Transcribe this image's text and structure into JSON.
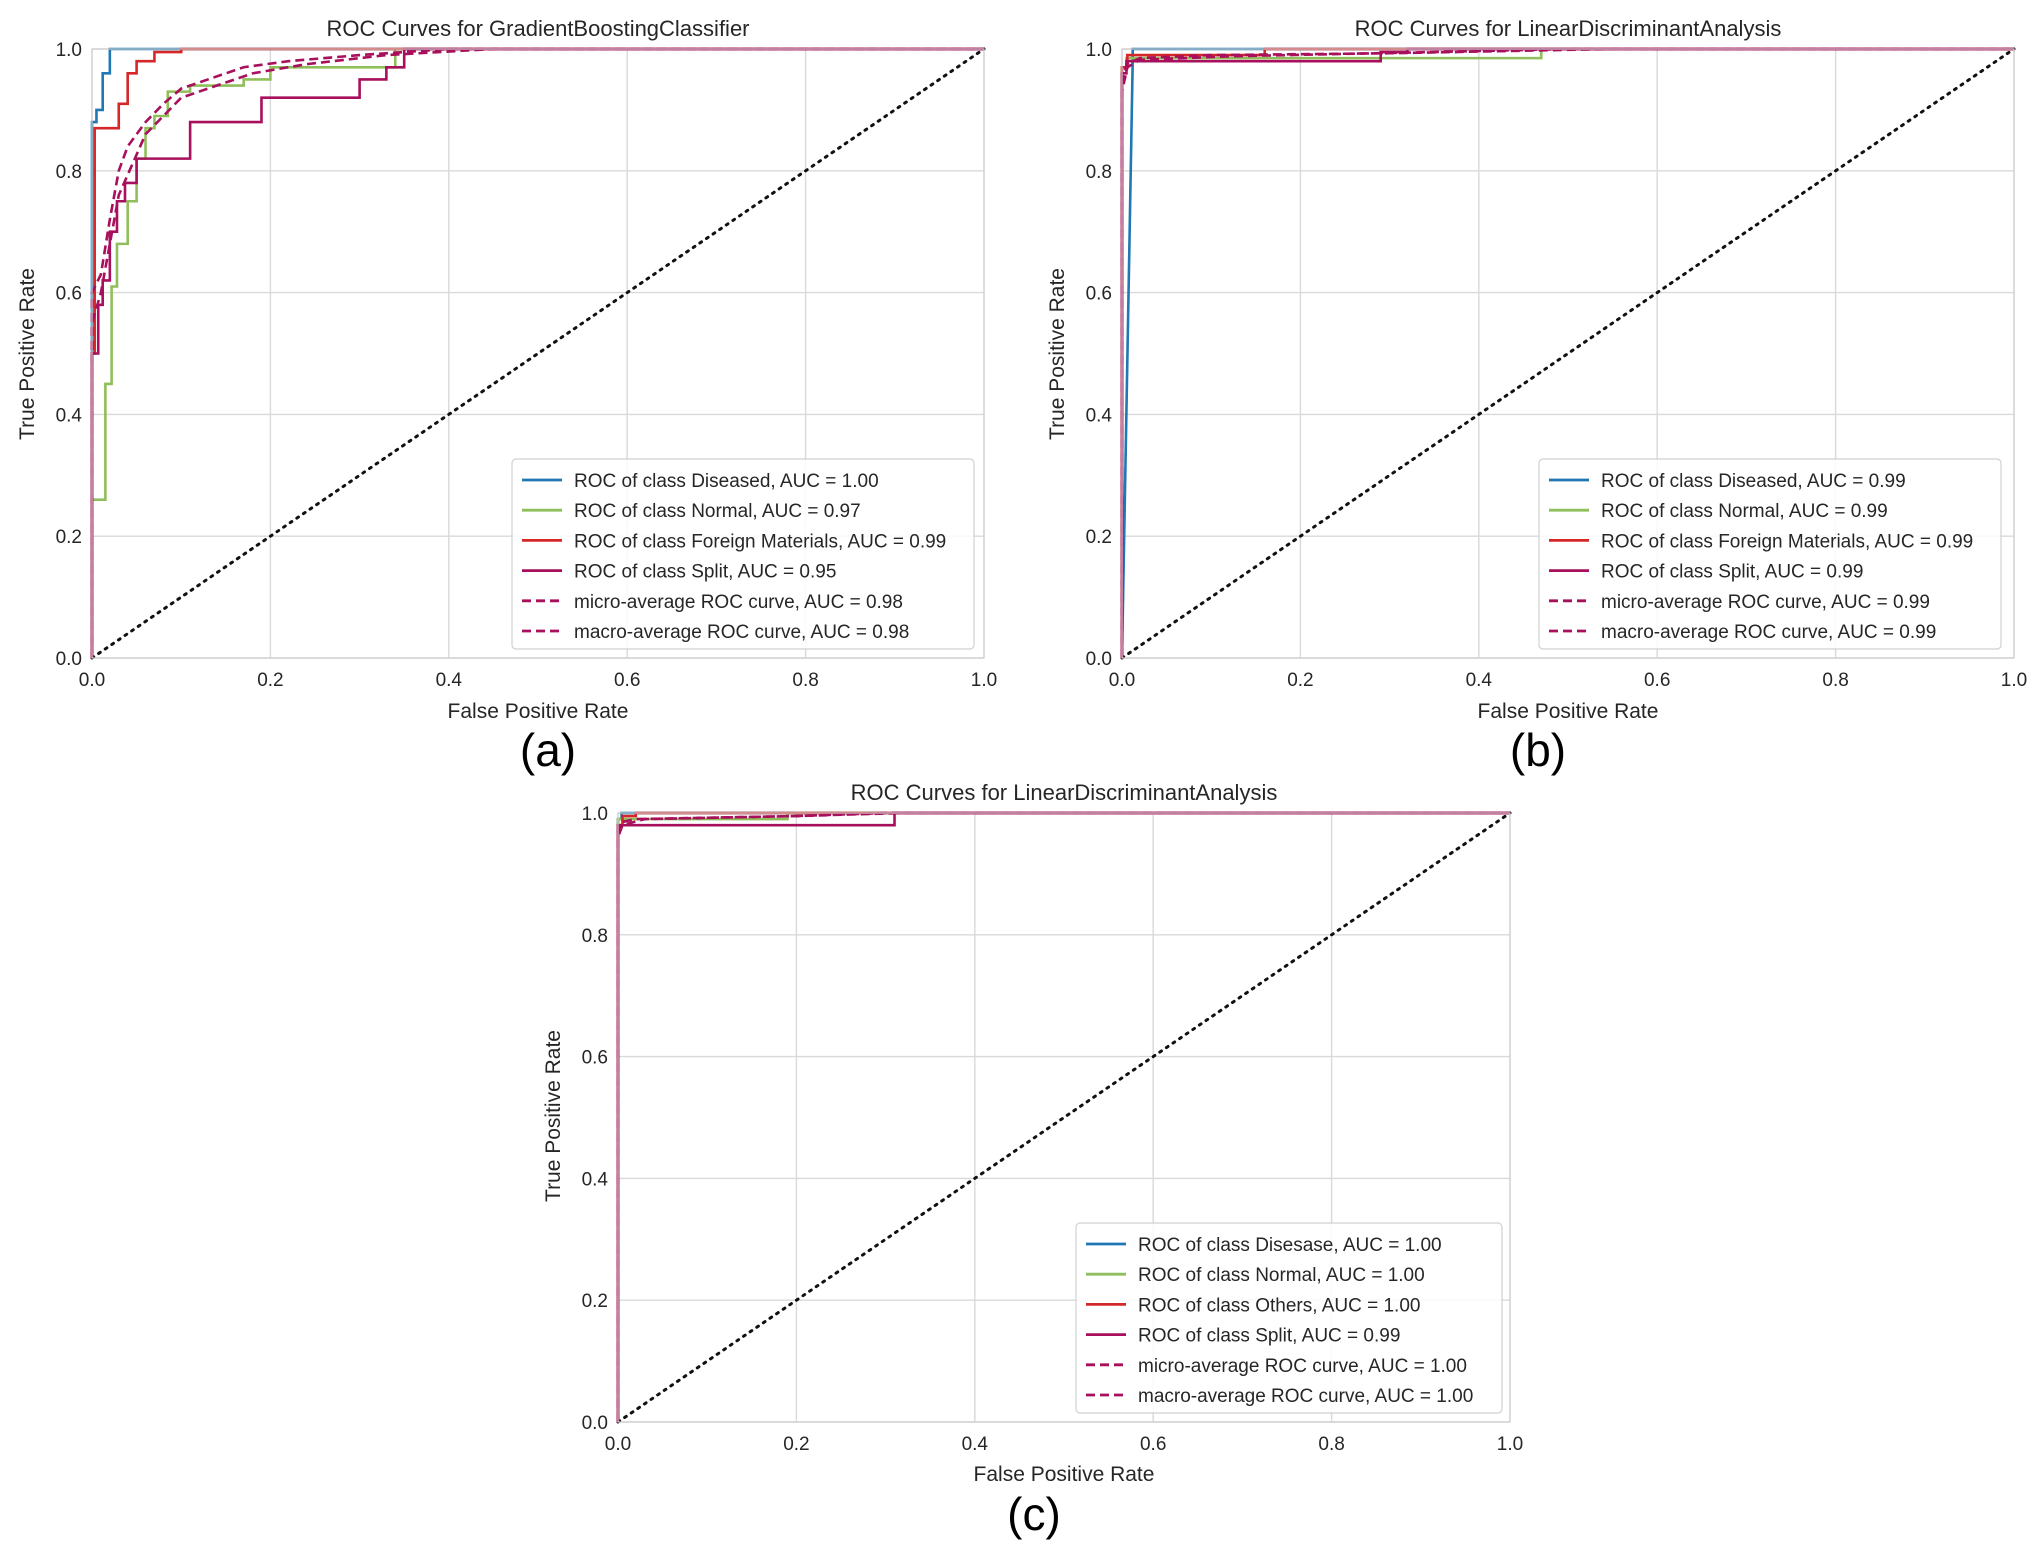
{
  "panel_labels": [
    "(a)",
    "(b)",
    "(c)"
  ],
  "chart_data": [
    {
      "type": "line",
      "title": "ROC Curves for GradientBoostingClassifier",
      "xlabel": "False Positive Rate",
      "ylabel": "True Positive Rate",
      "xlim": [
        0,
        1
      ],
      "ylim": [
        0,
        1
      ],
      "xticks": [
        "0.0",
        "0.2",
        "0.4",
        "0.6",
        "0.8",
        "1.0"
      ],
      "yticks": [
        "0.0",
        "0.2",
        "0.4",
        "0.6",
        "0.8",
        "1.0"
      ],
      "grid": true,
      "legend_position": "lower-right",
      "series": [
        {
          "name": "ROC of class Diseased, AUC = 1.00",
          "color": "#1f77b4",
          "dash": false,
          "points": [
            [
              0,
              0
            ],
            [
              0,
              0.88
            ],
            [
              0.005,
              0.88
            ],
            [
              0.005,
              0.9
            ],
            [
              0.012,
              0.9
            ],
            [
              0.012,
              0.96
            ],
            [
              0.02,
              0.96
            ],
            [
              0.02,
              1.0
            ],
            [
              1,
              1
            ]
          ]
        },
        {
          "name": "ROC of class Normal, AUC = 0.97",
          "color": "#8fbf5a",
          "dash": false,
          "points": [
            [
              0,
              0
            ],
            [
              0,
              0.26
            ],
            [
              0.015,
              0.26
            ],
            [
              0.015,
              0.45
            ],
            [
              0.022,
              0.45
            ],
            [
              0.022,
              0.61
            ],
            [
              0.028,
              0.61
            ],
            [
              0.028,
              0.68
            ],
            [
              0.04,
              0.68
            ],
            [
              0.04,
              0.75
            ],
            [
              0.05,
              0.75
            ],
            [
              0.05,
              0.82
            ],
            [
              0.06,
              0.82
            ],
            [
              0.06,
              0.87
            ],
            [
              0.07,
              0.87
            ],
            [
              0.07,
              0.89
            ],
            [
              0.085,
              0.89
            ],
            [
              0.085,
              0.93
            ],
            [
              0.11,
              0.93
            ],
            [
              0.11,
              0.94
            ],
            [
              0.17,
              0.94
            ],
            [
              0.17,
              0.95
            ],
            [
              0.2,
              0.95
            ],
            [
              0.2,
              0.97
            ],
            [
              0.34,
              0.97
            ],
            [
              0.34,
              1.0
            ],
            [
              1,
              1
            ]
          ]
        },
        {
          "name": "ROC of class Foreign Materials, AUC = 0.99",
          "color": "#d62728",
          "dash": false,
          "points": [
            [
              0,
              0
            ],
            [
              0,
              0.5
            ],
            [
              0.003,
              0.5
            ],
            [
              0.003,
              0.87
            ],
            [
              0.03,
              0.87
            ],
            [
              0.03,
              0.91
            ],
            [
              0.04,
              0.91
            ],
            [
              0.04,
              0.96
            ],
            [
              0.05,
              0.96
            ],
            [
              0.05,
              0.98
            ],
            [
              0.07,
              0.98
            ],
            [
              0.07,
              0.995
            ],
            [
              0.1,
              0.995
            ],
            [
              0.1,
              1.0
            ],
            [
              1,
              1
            ]
          ]
        },
        {
          "name": "ROC of class Split, AUC = 0.95",
          "color": "#a80f5c",
          "dash": false,
          "points": [
            [
              0,
              0
            ],
            [
              0,
              0.5
            ],
            [
              0.007,
              0.5
            ],
            [
              0.007,
              0.58
            ],
            [
              0.012,
              0.58
            ],
            [
              0.012,
              0.62
            ],
            [
              0.02,
              0.62
            ],
            [
              0.02,
              0.7
            ],
            [
              0.028,
              0.7
            ],
            [
              0.028,
              0.75
            ],
            [
              0.037,
              0.75
            ],
            [
              0.037,
              0.78
            ],
            [
              0.05,
              0.78
            ],
            [
              0.05,
              0.82
            ],
            [
              0.11,
              0.82
            ],
            [
              0.11,
              0.88
            ],
            [
              0.19,
              0.88
            ],
            [
              0.19,
              0.92
            ],
            [
              0.21,
              0.92
            ],
            [
              0.21,
              0.92
            ],
            [
              0.3,
              0.92
            ],
            [
              0.3,
              0.95
            ],
            [
              0.33,
              0.95
            ],
            [
              0.33,
              0.97
            ],
            [
              0.35,
              0.97
            ],
            [
              0.35,
              1.0
            ],
            [
              1,
              1
            ]
          ]
        },
        {
          "name": "micro-average ROC curve, AUC = 0.98",
          "color": "#a80f5c",
          "dash": true,
          "points": [
            [
              0,
              0
            ],
            [
              0,
              0.6
            ],
            [
              0.01,
              0.63
            ],
            [
              0.02,
              0.72
            ],
            [
              0.03,
              0.8
            ],
            [
              0.04,
              0.84
            ],
            [
              0.06,
              0.88
            ],
            [
              0.08,
              0.91
            ],
            [
              0.1,
              0.935
            ],
            [
              0.13,
              0.95
            ],
            [
              0.17,
              0.97
            ],
            [
              0.22,
              0.98
            ],
            [
              0.3,
              0.99
            ],
            [
              0.4,
              1.0
            ],
            [
              1,
              1
            ]
          ]
        },
        {
          "name": "macro-average ROC curve, AUC = 0.98",
          "color": "#a80f5c",
          "dash": true,
          "points": [
            [
              0,
              0
            ],
            [
              0,
              0.55
            ],
            [
              0.01,
              0.6
            ],
            [
              0.02,
              0.68
            ],
            [
              0.03,
              0.76
            ],
            [
              0.045,
              0.81
            ],
            [
              0.06,
              0.86
            ],
            [
              0.08,
              0.89
            ],
            [
              0.1,
              0.92
            ],
            [
              0.14,
              0.94
            ],
            [
              0.18,
              0.96
            ],
            [
              0.24,
              0.975
            ],
            [
              0.33,
              0.99
            ],
            [
              0.45,
              1.0
            ],
            [
              1,
              1
            ]
          ]
        }
      ]
    },
    {
      "type": "line",
      "title": "ROC Curves for LinearDiscriminantAnalysis",
      "xlabel": "False Positive Rate",
      "ylabel": "True Positive Rate",
      "xlim": [
        0,
        1
      ],
      "ylim": [
        0,
        1
      ],
      "xticks": [
        "0.0",
        "0.2",
        "0.4",
        "0.6",
        "0.8",
        "1.0"
      ],
      "yticks": [
        "0.0",
        "0.2",
        "0.4",
        "0.6",
        "0.8",
        "1.0"
      ],
      "grid": true,
      "legend_position": "lower-right",
      "series": [
        {
          "name": "ROC of class Diseased, AUC = 0.99",
          "color": "#1f77b4",
          "dash": false,
          "points": [
            [
              0,
              0
            ],
            [
              0.012,
              0.98
            ],
            [
              0.012,
              1.0
            ],
            [
              1,
              1
            ]
          ]
        },
        {
          "name": "ROC of class Normal, AUC = 0.99",
          "color": "#8fbf5a",
          "dash": false,
          "points": [
            [
              0,
              0
            ],
            [
              0,
              0.97
            ],
            [
              0.005,
              0.97
            ],
            [
              0.005,
              0.985
            ],
            [
              0.29,
              0.985
            ],
            [
              0.29,
              0.985
            ],
            [
              0.47,
              0.985
            ],
            [
              0.47,
              1.0
            ],
            [
              1,
              1
            ]
          ]
        },
        {
          "name": "ROC of class Foreign Materials, AUC = 0.99",
          "color": "#d62728",
          "dash": false,
          "points": [
            [
              0,
              0
            ],
            [
              0,
              0.97
            ],
            [
              0.006,
              0.97
            ],
            [
              0.006,
              0.99
            ],
            [
              0.16,
              0.99
            ],
            [
              0.16,
              1.0
            ],
            [
              1,
              1
            ]
          ]
        },
        {
          "name": "ROC of class Split, AUC = 0.99",
          "color": "#a80f5c",
          "dash": false,
          "points": [
            [
              0,
              0
            ],
            [
              0,
              0.96
            ],
            [
              0.005,
              0.96
            ],
            [
              0.005,
              0.98
            ],
            [
              0.29,
              0.98
            ],
            [
              0.29,
              0.995
            ],
            [
              0.32,
              0.995
            ],
            [
              0.32,
              1.0
            ],
            [
              1,
              1
            ]
          ]
        },
        {
          "name": "micro-average ROC curve, AUC = 0.99",
          "color": "#a80f5c",
          "dash": true,
          "points": [
            [
              0,
              0
            ],
            [
              0,
              0.94
            ],
            [
              0.005,
              0.975
            ],
            [
              0.02,
              0.985
            ],
            [
              0.1,
              0.99
            ],
            [
              0.3,
              0.993
            ],
            [
              0.55,
              1.0
            ],
            [
              1,
              1
            ]
          ]
        },
        {
          "name": "macro-average ROC curve, AUC = 0.99",
          "color": "#a80f5c",
          "dash": true,
          "points": [
            [
              0,
              0
            ],
            [
              0,
              0.93
            ],
            [
              0.006,
              0.97
            ],
            [
              0.02,
              0.982
            ],
            [
              0.12,
              0.988
            ],
            [
              0.35,
              0.995
            ],
            [
              0.5,
              1.0
            ],
            [
              1,
              1
            ]
          ]
        }
      ]
    },
    {
      "type": "line",
      "title": "ROC Curves for LinearDiscriminantAnalysis",
      "xlabel": "False Positive Rate",
      "ylabel": "True Positive Rate",
      "xlim": [
        0,
        1
      ],
      "ylim": [
        0,
        1
      ],
      "xticks": [
        "0.0",
        "0.2",
        "0.4",
        "0.6",
        "0.8",
        "1.0"
      ],
      "yticks": [
        "0.0",
        "0.2",
        "0.4",
        "0.6",
        "0.8",
        "1.0"
      ],
      "grid": true,
      "legend_position": "lower-right",
      "series": [
        {
          "name": "ROC of class Disesase, AUC = 1.00",
          "color": "#1f77b4",
          "dash": false,
          "points": [
            [
              0,
              0
            ],
            [
              0,
              0.99
            ],
            [
              0.004,
              0.99
            ],
            [
              0.004,
              1.0
            ],
            [
              1,
              1
            ]
          ]
        },
        {
          "name": "ROC of class Normal, AUC = 1.00",
          "color": "#8fbf5a",
          "dash": false,
          "points": [
            [
              0,
              0
            ],
            [
              0,
              0.99
            ],
            [
              0.19,
              0.99
            ],
            [
              0.19,
              1.0
            ],
            [
              1,
              1
            ]
          ]
        },
        {
          "name": "ROC of class Others, AUC = 1.00",
          "color": "#d62728",
          "dash": false,
          "points": [
            [
              0,
              0
            ],
            [
              0,
              0.98
            ],
            [
              0.005,
              0.98
            ],
            [
              0.005,
              0.995
            ],
            [
              0.02,
              0.995
            ],
            [
              0.02,
              1.0
            ],
            [
              1,
              1
            ]
          ]
        },
        {
          "name": "ROC of class Split, AUC = 0.99",
          "color": "#a80f5c",
          "dash": false,
          "points": [
            [
              0,
              0
            ],
            [
              0,
              0.98
            ],
            [
              0.31,
              0.98
            ],
            [
              0.31,
              1.0
            ],
            [
              1,
              1
            ]
          ]
        },
        {
          "name": "micro-average ROC curve, AUC = 1.00",
          "color": "#a80f5c",
          "dash": true,
          "points": [
            [
              0,
              0
            ],
            [
              0,
              0.97
            ],
            [
              0.004,
              0.985
            ],
            [
              0.02,
              0.99
            ],
            [
              0.2,
              0.995
            ],
            [
              0.32,
              1.0
            ],
            [
              1,
              1
            ]
          ]
        },
        {
          "name": "macro-average ROC curve, AUC = 1.00",
          "color": "#a80f5c",
          "dash": true,
          "points": [
            [
              0,
              0
            ],
            [
              0,
              0.96
            ],
            [
              0.005,
              0.98
            ],
            [
              0.03,
              0.99
            ],
            [
              0.2,
              0.995
            ],
            [
              0.3,
              1.0
            ],
            [
              1,
              1
            ]
          ]
        }
      ]
    }
  ]
}
